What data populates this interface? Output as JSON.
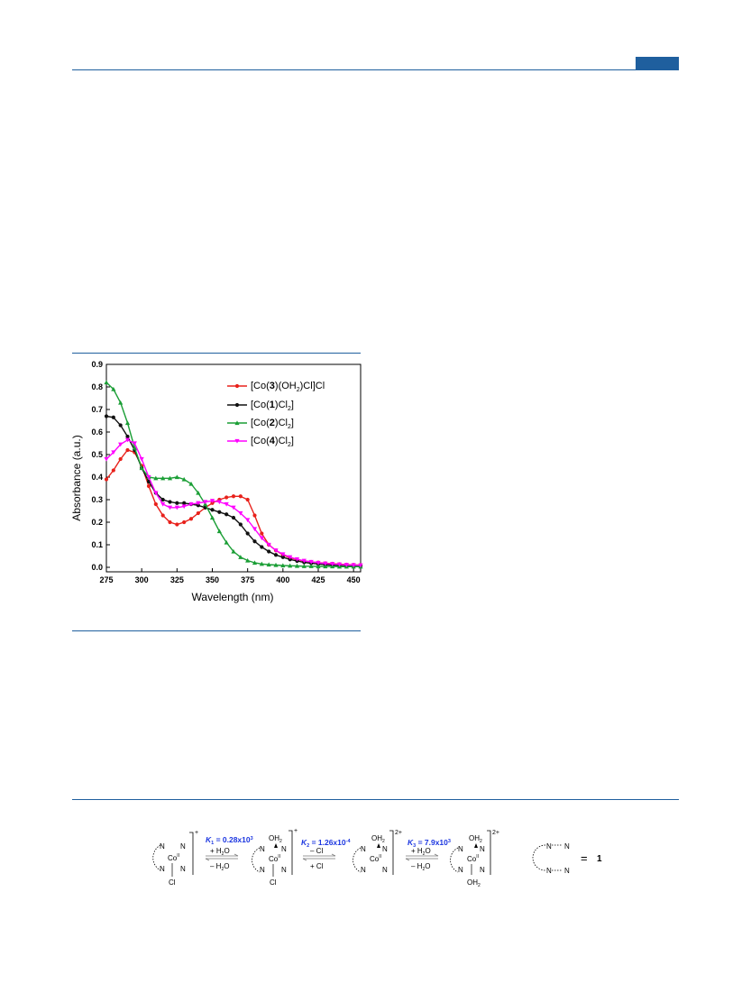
{
  "chart_data": {
    "type": "line",
    "xlabel": "Wavelength (nm)",
    "ylabel": "Absorbance (a.u.)",
    "xlim": [
      275,
      455
    ],
    "ylim": [
      -0.02,
      0.9
    ],
    "xticks": [
      275,
      300,
      325,
      350,
      375,
      400,
      425,
      450
    ],
    "yticks": [
      0.0,
      0.1,
      0.2,
      0.3,
      0.4,
      0.5,
      0.6,
      0.7,
      0.8,
      0.9
    ],
    "x": [
      275,
      280,
      285,
      290,
      295,
      300,
      305,
      310,
      315,
      320,
      325,
      330,
      335,
      340,
      345,
      350,
      355,
      360,
      365,
      370,
      375,
      380,
      385,
      390,
      395,
      400,
      405,
      410,
      415,
      420,
      425,
      430,
      435,
      440,
      445,
      450,
      455
    ],
    "legend_position": "top-right",
    "series": [
      {
        "name": "[Co(3)(OH2)Cl]Cl",
        "color": "#e8211b",
        "marker": "circle",
        "values": [
          0.39,
          0.43,
          0.48,
          0.52,
          0.51,
          0.45,
          0.36,
          0.28,
          0.23,
          0.2,
          0.19,
          0.2,
          0.215,
          0.24,
          0.265,
          0.285,
          0.3,
          0.31,
          0.315,
          0.315,
          0.3,
          0.23,
          0.15,
          0.1,
          0.075,
          0.055,
          0.042,
          0.034,
          0.028,
          0.024,
          0.021,
          0.018,
          0.016,
          0.014,
          0.012,
          0.011,
          0.01
        ]
      },
      {
        "name": "[Co(1)Cl2]",
        "color": "#111111",
        "marker": "circle",
        "values": [
          0.67,
          0.665,
          0.63,
          0.58,
          0.52,
          0.44,
          0.38,
          0.33,
          0.3,
          0.29,
          0.285,
          0.285,
          0.28,
          0.275,
          0.265,
          0.255,
          0.245,
          0.235,
          0.22,
          0.19,
          0.15,
          0.115,
          0.09,
          0.07,
          0.055,
          0.045,
          0.035,
          0.028,
          0.022,
          0.018,
          0.015,
          0.012,
          0.01,
          0.009,
          0.008,
          0.007,
          0.006
        ]
      },
      {
        "name": "[Co(2)Cl2]",
        "color": "#1a9e35",
        "marker": "triangle",
        "values": [
          0.82,
          0.79,
          0.73,
          0.64,
          0.53,
          0.44,
          0.4,
          0.395,
          0.395,
          0.395,
          0.4,
          0.39,
          0.37,
          0.33,
          0.28,
          0.22,
          0.16,
          0.11,
          0.07,
          0.045,
          0.03,
          0.02,
          0.015,
          0.012,
          0.01,
          0.008,
          0.007,
          0.006,
          0.005,
          0.005,
          0.004,
          0.004,
          0.004,
          0.003,
          0.003,
          0.003,
          0.003
        ]
      },
      {
        "name": "[Co(4)Cl2]",
        "color": "#ff00ff",
        "marker": "triangle-down",
        "values": [
          0.48,
          0.51,
          0.545,
          0.565,
          0.55,
          0.48,
          0.4,
          0.33,
          0.28,
          0.265,
          0.265,
          0.27,
          0.28,
          0.285,
          0.29,
          0.295,
          0.29,
          0.28,
          0.265,
          0.24,
          0.21,
          0.17,
          0.13,
          0.1,
          0.075,
          0.058,
          0.045,
          0.036,
          0.029,
          0.024,
          0.02,
          0.017,
          0.015,
          0.013,
          0.011,
          0.01,
          0.009
        ]
      }
    ]
  },
  "legend": [
    {
      "pre": "[Co(",
      "num": "3",
      "post": ")(OH",
      "sub": "2",
      "tail": ")Cl]Cl"
    },
    {
      "pre": "[Co(",
      "num": "1",
      "post": ")Cl",
      "sub": "2",
      "tail": "]"
    },
    {
      "pre": "[Co(",
      "num": "2",
      "post": ")Cl",
      "sub": "2",
      "tail": "]"
    },
    {
      "pre": "[Co(",
      "num": "4",
      "post": ")Cl",
      "sub": "2",
      "tail": "]"
    }
  ],
  "scheme": {
    "k1_sym": "K",
    "k1_sub": "1",
    "k1_val": " = 0.28x10",
    "k1_exp": "3",
    "k2_sym": "K",
    "k2_sub": "2",
    "k2_val": " = 1.26x10",
    "k2_exp": "-4",
    "k3_sym": "K",
    "k3_sub": "3",
    "k3_val": " = 7.9x10",
    "k3_exp": "3",
    "plus_h2o": "+ H",
    "minus_h2o": "– H",
    "minus_cl": "– Cl",
    "plus_cl": "+ Cl",
    "two": "2",
    "o": "O",
    "charge_plus": "+",
    "charge_2plus": "2+",
    "co": "Co",
    "co_ox": "II",
    "n": "N",
    "cl": "Cl",
    "oh2_a": "OH",
    "oh2_b": "2",
    "equals": "=",
    "ligand_num": "1",
    "accent_color": "#1a35e0"
  }
}
